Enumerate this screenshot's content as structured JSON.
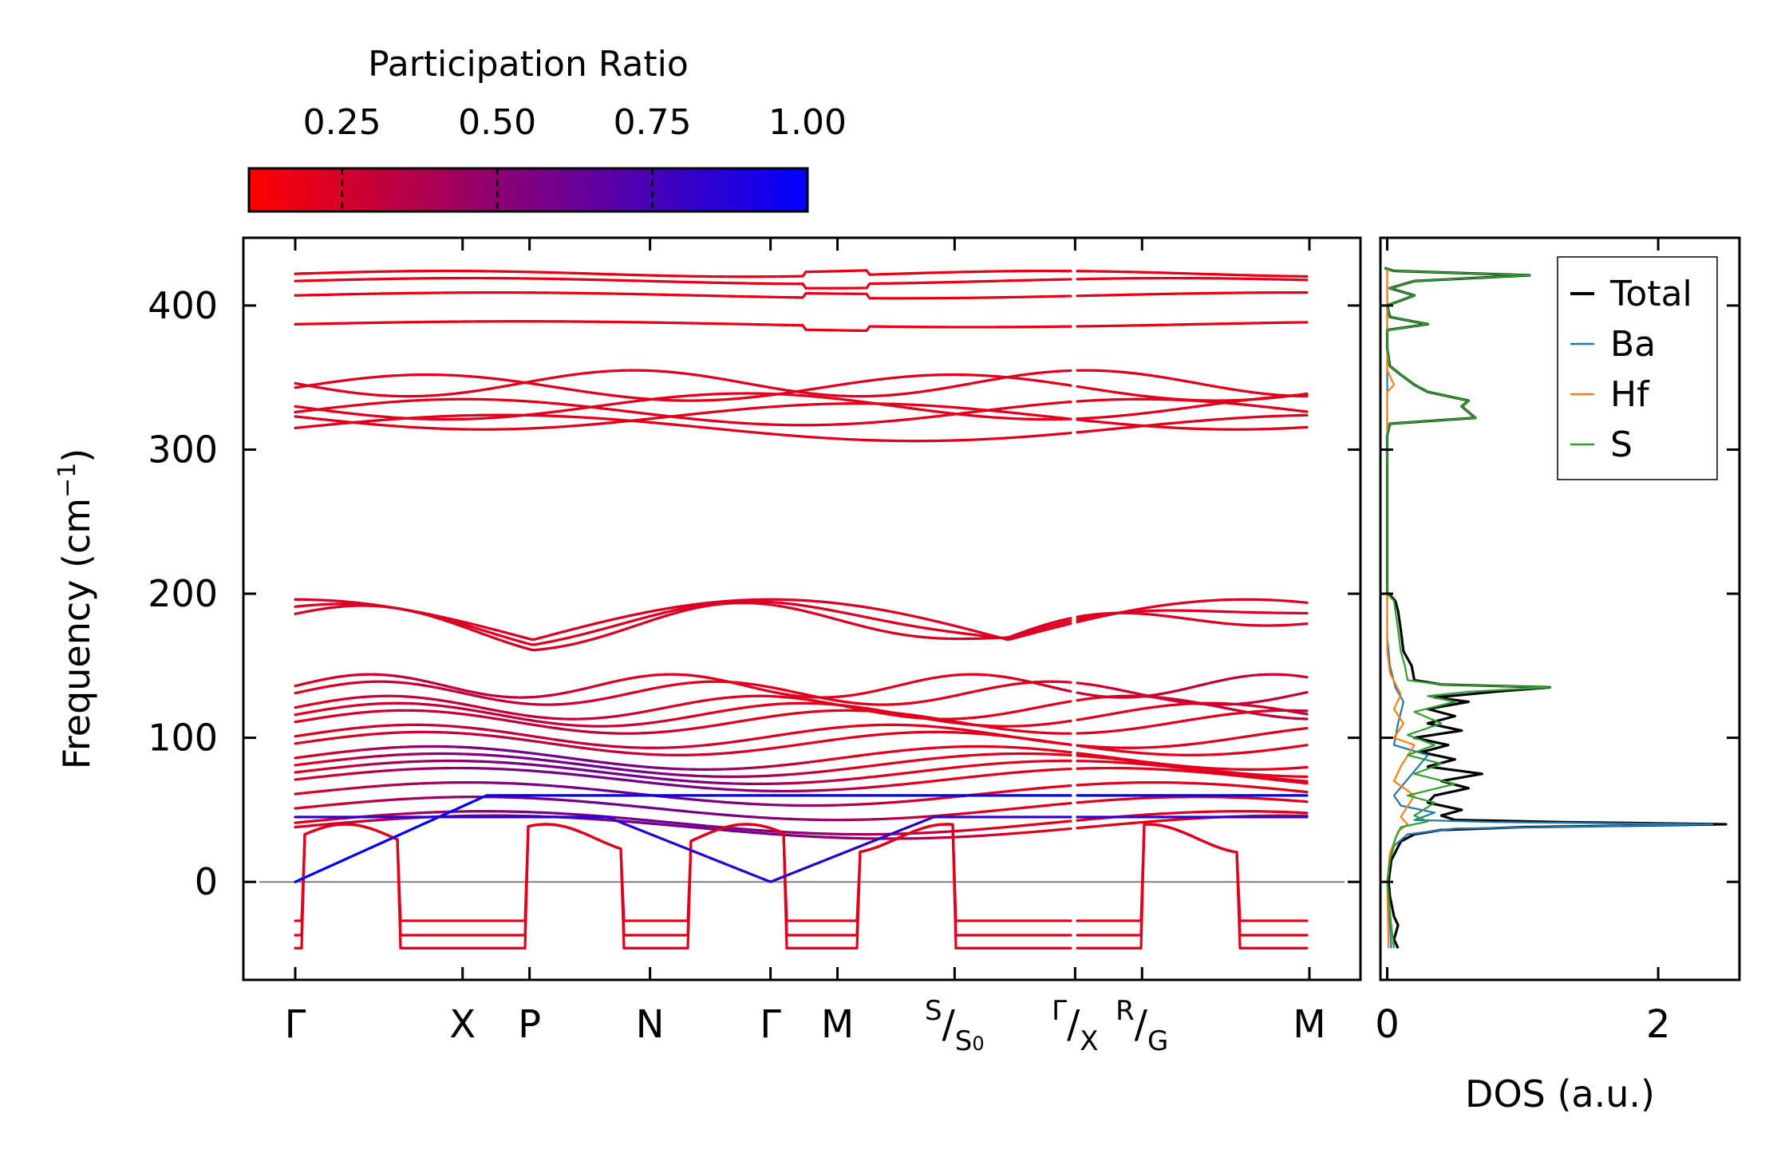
{
  "colors": {
    "cmap_low": "#ff0000",
    "cmap_high": "#0000ff",
    "axes": "#000000",
    "zero_line": "#808080",
    "total": "#000000",
    "ba": "#1f77b4",
    "hf": "#ff7f0e",
    "s": "#2ca02c"
  },
  "chart_data": [
    {
      "type": "line",
      "name": "phonon-band-structure",
      "ylabel": "Frequency (cm",
      "ylabel_sup": "−1",
      "ylabel_end": ")",
      "ylim": [
        -68,
        447
      ],
      "yticks": [
        0,
        100,
        200,
        300,
        400
      ],
      "ytick_labels": [
        "0",
        "100",
        "200",
        "300",
        "400"
      ],
      "kpoints": [
        {
          "label": "Γ",
          "position": 0.0
        },
        {
          "label": "X",
          "position": 1.0
        },
        {
          "label": "P",
          "position": 1.4
        },
        {
          "label": "N",
          "position": 2.12
        },
        {
          "label": "Γ",
          "position": 2.84
        },
        {
          "label": "M",
          "position": 3.24
        },
        {
          "label": "S",
          "sub": "S",
          "sub2": "0",
          "position": 3.94
        },
        {
          "label": "Γ",
          "sub": "X",
          "position": 4.66
        },
        {
          "label": "R",
          "sub": "G",
          "position": 5.06
        },
        {
          "label": "M",
          "position": 6.06
        }
      ],
      "path_breaks": [
        4.66
      ],
      "zero_line": 0,
      "bands": {
        "flat_high": [
          422,
          417,
          407,
          387
        ],
        "mid_group": [
          346,
          343,
          330,
          326,
          323,
          315
        ],
        "upper_acoustic_top": [
          196,
          191,
          186
        ],
        "dense_low": [
          136,
          131,
          121,
          116,
          111,
          101,
          96,
          86,
          81,
          76,
          71,
          61,
          51,
          41,
          38
        ],
        "imaginary": [
          -27,
          -37,
          -46
        ],
        "acoustic_zero": 0
      },
      "participation_ratio_range": [
        0.1,
        1.0
      ]
    },
    {
      "type": "line",
      "name": "phonon-dos",
      "xlabel": "DOS (a.u.)",
      "xlim": [
        -0.05,
        2.6
      ],
      "xticks": [
        0,
        2
      ],
      "xtick_labels": [
        "0",
        "2"
      ],
      "ylim": [
        -68,
        447
      ],
      "legend_position": "upper-right",
      "series": [
        {
          "name": "Total",
          "key": "total",
          "points": [
            [
              0.08,
              -46
            ],
            [
              0.05,
              -40
            ],
            [
              0.08,
              -30
            ],
            [
              0.05,
              -24
            ],
            [
              0.02,
              -10
            ],
            [
              0.01,
              0
            ],
            [
              0.03,
              15
            ],
            [
              0.1,
              28
            ],
            [
              0.2,
              33
            ],
            [
              0.4,
              36
            ],
            [
              1.0,
              38
            ],
            [
              2.5,
              40
            ],
            [
              1.3,
              41.5
            ],
            [
              0.5,
              43
            ],
            [
              0.4,
              46
            ],
            [
              0.55,
              50
            ],
            [
              0.3,
              55
            ],
            [
              0.35,
              60
            ],
            [
              0.6,
              65
            ],
            [
              0.4,
              70
            ],
            [
              0.7,
              75
            ],
            [
              0.3,
              80
            ],
            [
              0.5,
              85
            ],
            [
              0.25,
              90
            ],
            [
              0.45,
              95
            ],
            [
              0.2,
              100
            ],
            [
              0.55,
              105
            ],
            [
              0.3,
              110
            ],
            [
              0.5,
              115
            ],
            [
              0.3,
              120
            ],
            [
              0.6,
              125
            ],
            [
              0.35,
              128
            ],
            [
              0.8,
              132
            ],
            [
              1.2,
              135
            ],
            [
              0.4,
              137
            ],
            [
              0.2,
              140
            ],
            [
              0.18,
              150
            ],
            [
              0.12,
              160
            ],
            [
              0.1,
              175
            ],
            [
              0.08,
              188
            ],
            [
              0.06,
              195
            ],
            [
              0.02,
              199
            ],
            [
              0.0,
              201
            ],
            [
              0.0,
              310
            ],
            [
              0.02,
              318
            ],
            [
              0.65,
              322
            ],
            [
              0.6,
              326
            ],
            [
              0.55,
              330
            ],
            [
              0.6,
              334
            ],
            [
              0.3,
              340
            ],
            [
              0.2,
              345
            ],
            [
              0.1,
              352
            ],
            [
              0.02,
              358
            ],
            [
              0.0,
              370
            ],
            [
              0.0,
              383
            ],
            [
              0.3,
              387
            ],
            [
              0.02,
              392
            ],
            [
              0.0,
              400
            ],
            [
              0.2,
              407
            ],
            [
              0.02,
              412
            ],
            [
              0.2,
              417
            ],
            [
              1.05,
              421
            ],
            [
              0.05,
              424
            ],
            [
              -0.02,
              426
            ]
          ]
        },
        {
          "name": "Ba",
          "key": "ba",
          "points": [
            [
              0.03,
              -46
            ],
            [
              0.02,
              -30
            ],
            [
              0.01,
              -10
            ],
            [
              0.0,
              0
            ],
            [
              0.02,
              15
            ],
            [
              0.05,
              25
            ],
            [
              0.15,
              33
            ],
            [
              0.5,
              37
            ],
            [
              2.4,
              40
            ],
            [
              0.8,
              41.5
            ],
            [
              0.2,
              43
            ],
            [
              0.35,
              48
            ],
            [
              0.1,
              53
            ],
            [
              0.05,
              60
            ],
            [
              0.3,
              88
            ],
            [
              0.05,
              95
            ],
            [
              0.08,
              110
            ],
            [
              0.12,
              125
            ],
            [
              0.06,
              135
            ],
            [
              0.02,
              150
            ],
            [
              0.0,
              170
            ],
            [
              0.0,
              426
            ]
          ]
        },
        {
          "name": "Hf",
          "key": "hf",
          "points": [
            [
              0.01,
              -46
            ],
            [
              0.0,
              0
            ],
            [
              0.02,
              20
            ],
            [
              0.08,
              35
            ],
            [
              0.15,
              40
            ],
            [
              0.1,
              45
            ],
            [
              0.2,
              60
            ],
            [
              0.05,
              70
            ],
            [
              0.1,
              80
            ],
            [
              0.2,
              95
            ],
            [
              0.05,
              100
            ],
            [
              0.12,
              110
            ],
            [
              0.05,
              120
            ],
            [
              0.1,
              130
            ],
            [
              0.02,
              145
            ],
            [
              0.0,
              160
            ],
            [
              0.0,
              340
            ],
            [
              0.05,
              345
            ],
            [
              0.0,
              355
            ],
            [
              0.0,
              426
            ]
          ]
        },
        {
          "name": "S",
          "key": "s",
          "points": [
            [
              0.05,
              -46
            ],
            [
              0.03,
              -30
            ],
            [
              0.01,
              -10
            ],
            [
              0.0,
              0
            ],
            [
              0.02,
              15
            ],
            [
              0.06,
              30
            ],
            [
              0.1,
              38
            ],
            [
              0.3,
              42
            ],
            [
              0.2,
              46
            ],
            [
              0.35,
              55
            ],
            [
              0.15,
              60
            ],
            [
              0.5,
              68
            ],
            [
              0.2,
              75
            ],
            [
              0.4,
              82
            ],
            [
              0.15,
              88
            ],
            [
              0.35,
              95
            ],
            [
              0.15,
              102
            ],
            [
              0.4,
              110
            ],
            [
              0.2,
              118
            ],
            [
              0.5,
              125
            ],
            [
              0.3,
              129
            ],
            [
              0.6,
              132
            ],
            [
              1.2,
              135
            ],
            [
              0.4,
              137
            ],
            [
              0.15,
              140
            ],
            [
              0.13,
              150
            ],
            [
              0.1,
              160
            ],
            [
              0.08,
              175
            ],
            [
              0.06,
              188
            ],
            [
              0.05,
              195
            ],
            [
              0.01,
              199
            ],
            [
              0.0,
              201
            ],
            [
              0.0,
              310
            ],
            [
              0.02,
              318
            ],
            [
              0.65,
              322
            ],
            [
              0.6,
              326
            ],
            [
              0.55,
              330
            ],
            [
              0.6,
              334
            ],
            [
              0.3,
              340
            ],
            [
              0.2,
              345
            ],
            [
              0.1,
              352
            ],
            [
              0.02,
              358
            ],
            [
              0.0,
              370
            ],
            [
              0.0,
              383
            ],
            [
              0.3,
              387
            ],
            [
              0.02,
              392
            ],
            [
              0.0,
              400
            ],
            [
              0.2,
              407
            ],
            [
              0.02,
              412
            ],
            [
              0.2,
              417
            ],
            [
              1.05,
              421
            ],
            [
              0.05,
              424
            ],
            [
              -0.02,
              426
            ]
          ]
        }
      ]
    },
    {
      "type": "colorbar",
      "name": "participation-ratio-colorbar",
      "title": "Participation Ratio",
      "range": [
        0.1,
        1.0
      ],
      "ticks": [
        0.25,
        0.5,
        0.75,
        1.0
      ],
      "tick_labels": [
        "0.25",
        "0.50",
        "0.75",
        "1.00"
      ]
    }
  ]
}
